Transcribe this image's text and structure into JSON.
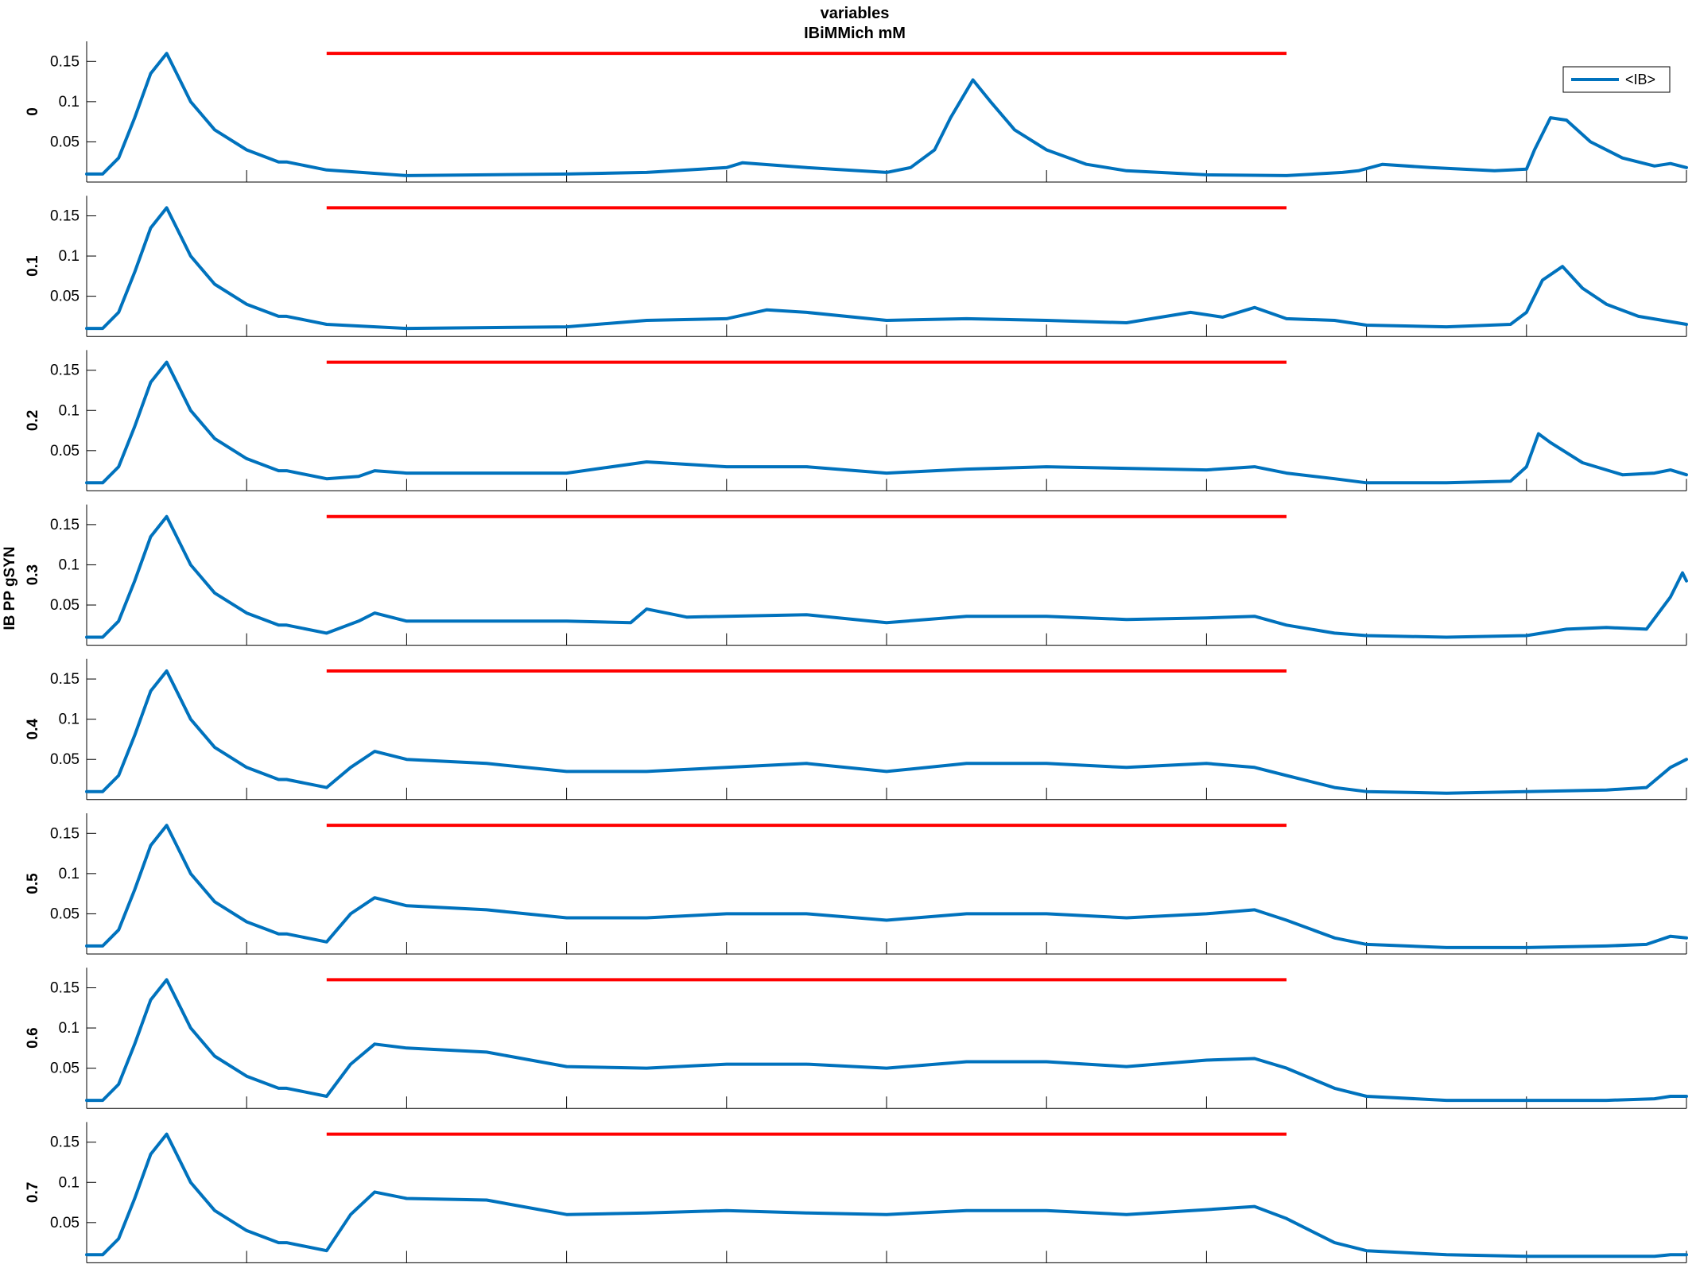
{
  "chart_data": {
    "type": "line",
    "title": "variables",
    "subtitle": "IBiMMich mM",
    "ylabel": "IB PP gSYN",
    "xlim": [
      0,
      2000
    ],
    "ylim": [
      0,
      0.175
    ],
    "xticks": [
      0,
      200,
      400,
      600,
      800,
      1000,
      1200,
      1400,
      1600,
      1800,
      2000
    ],
    "yticks": [
      0.05,
      0.1,
      0.15
    ],
    "ytick_labels": [
      "0.05",
      "0.1",
      "0.15"
    ],
    "legend": {
      "label": "<IB>",
      "position": "top-right",
      "panel": 0
    },
    "colors": {
      "series": "#0072BD",
      "stimulus": "#FF0000"
    },
    "stimulus_bar": {
      "x_start": 300,
      "x_end": 1500,
      "y": 0.16
    },
    "panels": [
      {
        "label": "0",
        "x": [
          0,
          20,
          40,
          60,
          80,
          100,
          110,
          130,
          160,
          200,
          240,
          250,
          300,
          400,
          600,
          700,
          800,
          820,
          900,
          1000,
          1030,
          1060,
          1080,
          1108,
          1130,
          1160,
          1200,
          1250,
          1300,
          1400,
          1500,
          1570,
          1590,
          1620,
          1680,
          1760,
          1800,
          1810,
          1830,
          1850,
          1880,
          1920,
          1960,
          1980,
          2000
        ],
        "y": [
          0.01,
          0.01,
          0.03,
          0.08,
          0.135,
          0.16,
          0.14,
          0.1,
          0.065,
          0.04,
          0.025,
          0.025,
          0.015,
          0.008,
          0.01,
          0.012,
          0.018,
          0.024,
          0.018,
          0.012,
          0.018,
          0.04,
          0.08,
          0.127,
          0.1,
          0.065,
          0.04,
          0.022,
          0.014,
          0.009,
          0.008,
          0.012,
          0.014,
          0.022,
          0.018,
          0.014,
          0.016,
          0.04,
          0.08,
          0.077,
          0.05,
          0.03,
          0.02,
          0.023,
          0.018
        ]
      },
      {
        "label": "0.1",
        "x": [
          0,
          20,
          40,
          60,
          80,
          100,
          110,
          130,
          160,
          200,
          240,
          250,
          300,
          400,
          600,
          700,
          800,
          850,
          900,
          1000,
          1100,
          1200,
          1300,
          1380,
          1420,
          1460,
          1500,
          1560,
          1600,
          1700,
          1780,
          1800,
          1820,
          1845,
          1870,
          1900,
          1940,
          2000
        ],
        "y": [
          0.01,
          0.01,
          0.03,
          0.08,
          0.135,
          0.16,
          0.14,
          0.1,
          0.065,
          0.04,
          0.025,
          0.025,
          0.015,
          0.01,
          0.012,
          0.02,
          0.022,
          0.033,
          0.03,
          0.02,
          0.022,
          0.02,
          0.017,
          0.03,
          0.024,
          0.036,
          0.022,
          0.02,
          0.014,
          0.012,
          0.015,
          0.03,
          0.07,
          0.087,
          0.06,
          0.04,
          0.025,
          0.015
        ]
      },
      {
        "label": "0.2",
        "x": [
          0,
          20,
          40,
          60,
          80,
          100,
          110,
          130,
          160,
          200,
          240,
          250,
          300,
          340,
          360,
          400,
          500,
          600,
          700,
          800,
          900,
          1000,
          1100,
          1200,
          1300,
          1400,
          1460,
          1500,
          1560,
          1600,
          1700,
          1780,
          1800,
          1815,
          1830,
          1870,
          1920,
          1960,
          1980,
          2000
        ],
        "y": [
          0.01,
          0.01,
          0.03,
          0.08,
          0.135,
          0.16,
          0.14,
          0.1,
          0.065,
          0.04,
          0.025,
          0.025,
          0.015,
          0.018,
          0.025,
          0.022,
          0.022,
          0.022,
          0.036,
          0.03,
          0.03,
          0.022,
          0.027,
          0.03,
          0.028,
          0.026,
          0.03,
          0.022,
          0.015,
          0.01,
          0.01,
          0.012,
          0.03,
          0.071,
          0.06,
          0.035,
          0.02,
          0.022,
          0.026,
          0.02
        ]
      },
      {
        "label": "0.3",
        "x": [
          0,
          20,
          40,
          60,
          80,
          100,
          110,
          130,
          160,
          200,
          240,
          250,
          300,
          340,
          360,
          400,
          500,
          600,
          680,
          700,
          750,
          800,
          900,
          1000,
          1100,
          1200,
          1300,
          1400,
          1460,
          1500,
          1560,
          1600,
          1700,
          1800,
          1850,
          1900,
          1950,
          1980,
          1995,
          2000
        ],
        "y": [
          0.01,
          0.01,
          0.03,
          0.08,
          0.135,
          0.16,
          0.14,
          0.1,
          0.065,
          0.04,
          0.025,
          0.025,
          0.015,
          0.03,
          0.04,
          0.03,
          0.03,
          0.03,
          0.028,
          0.045,
          0.035,
          0.036,
          0.038,
          0.028,
          0.036,
          0.036,
          0.032,
          0.034,
          0.036,
          0.025,
          0.015,
          0.012,
          0.01,
          0.012,
          0.02,
          0.022,
          0.02,
          0.06,
          0.09,
          0.08
        ]
      },
      {
        "label": "0.4",
        "x": [
          0,
          20,
          40,
          60,
          80,
          100,
          110,
          130,
          160,
          200,
          240,
          250,
          300,
          330,
          360,
          400,
          500,
          600,
          700,
          800,
          900,
          1000,
          1100,
          1200,
          1300,
          1400,
          1460,
          1500,
          1560,
          1600,
          1700,
          1800,
          1900,
          1950,
          1980,
          2000
        ],
        "y": [
          0.01,
          0.01,
          0.03,
          0.08,
          0.135,
          0.16,
          0.14,
          0.1,
          0.065,
          0.04,
          0.025,
          0.025,
          0.015,
          0.04,
          0.06,
          0.05,
          0.045,
          0.035,
          0.035,
          0.04,
          0.045,
          0.035,
          0.045,
          0.045,
          0.04,
          0.045,
          0.04,
          0.03,
          0.015,
          0.01,
          0.008,
          0.01,
          0.012,
          0.015,
          0.04,
          0.05
        ]
      },
      {
        "label": "0.5",
        "x": [
          0,
          20,
          40,
          60,
          80,
          100,
          110,
          130,
          160,
          200,
          240,
          250,
          300,
          330,
          360,
          400,
          500,
          600,
          700,
          800,
          900,
          1000,
          1100,
          1200,
          1300,
          1400,
          1460,
          1500,
          1560,
          1600,
          1700,
          1800,
          1900,
          1950,
          1980,
          2000
        ],
        "y": [
          0.01,
          0.01,
          0.03,
          0.08,
          0.135,
          0.16,
          0.14,
          0.1,
          0.065,
          0.04,
          0.025,
          0.025,
          0.015,
          0.05,
          0.07,
          0.06,
          0.055,
          0.045,
          0.045,
          0.05,
          0.05,
          0.042,
          0.05,
          0.05,
          0.045,
          0.05,
          0.055,
          0.042,
          0.02,
          0.012,
          0.008,
          0.008,
          0.01,
          0.012,
          0.022,
          0.02
        ]
      },
      {
        "label": "0.6",
        "x": [
          0,
          20,
          40,
          60,
          80,
          100,
          110,
          130,
          160,
          200,
          240,
          250,
          300,
          330,
          360,
          400,
          500,
          600,
          700,
          800,
          900,
          1000,
          1100,
          1200,
          1300,
          1400,
          1460,
          1500,
          1560,
          1600,
          1700,
          1800,
          1900,
          1960,
          1980,
          2000
        ],
        "y": [
          0.01,
          0.01,
          0.03,
          0.08,
          0.135,
          0.16,
          0.14,
          0.1,
          0.065,
          0.04,
          0.025,
          0.025,
          0.015,
          0.055,
          0.08,
          0.075,
          0.07,
          0.052,
          0.05,
          0.055,
          0.055,
          0.05,
          0.058,
          0.058,
          0.052,
          0.06,
          0.062,
          0.05,
          0.025,
          0.015,
          0.01,
          0.01,
          0.01,
          0.012,
          0.015,
          0.015
        ]
      },
      {
        "label": "0.7",
        "x": [
          0,
          20,
          40,
          60,
          80,
          100,
          110,
          130,
          160,
          200,
          240,
          250,
          300,
          330,
          360,
          400,
          500,
          600,
          700,
          800,
          900,
          1000,
          1100,
          1200,
          1300,
          1400,
          1460,
          1500,
          1560,
          1600,
          1700,
          1800,
          1900,
          1960,
          1980,
          2000
        ],
        "y": [
          0.01,
          0.01,
          0.03,
          0.08,
          0.135,
          0.16,
          0.14,
          0.1,
          0.065,
          0.04,
          0.025,
          0.025,
          0.015,
          0.06,
          0.088,
          0.08,
          0.078,
          0.06,
          0.062,
          0.065,
          0.062,
          0.06,
          0.065,
          0.065,
          0.06,
          0.066,
          0.07,
          0.055,
          0.025,
          0.015,
          0.01,
          0.008,
          0.008,
          0.008,
          0.01,
          0.01
        ]
      }
    ]
  }
}
